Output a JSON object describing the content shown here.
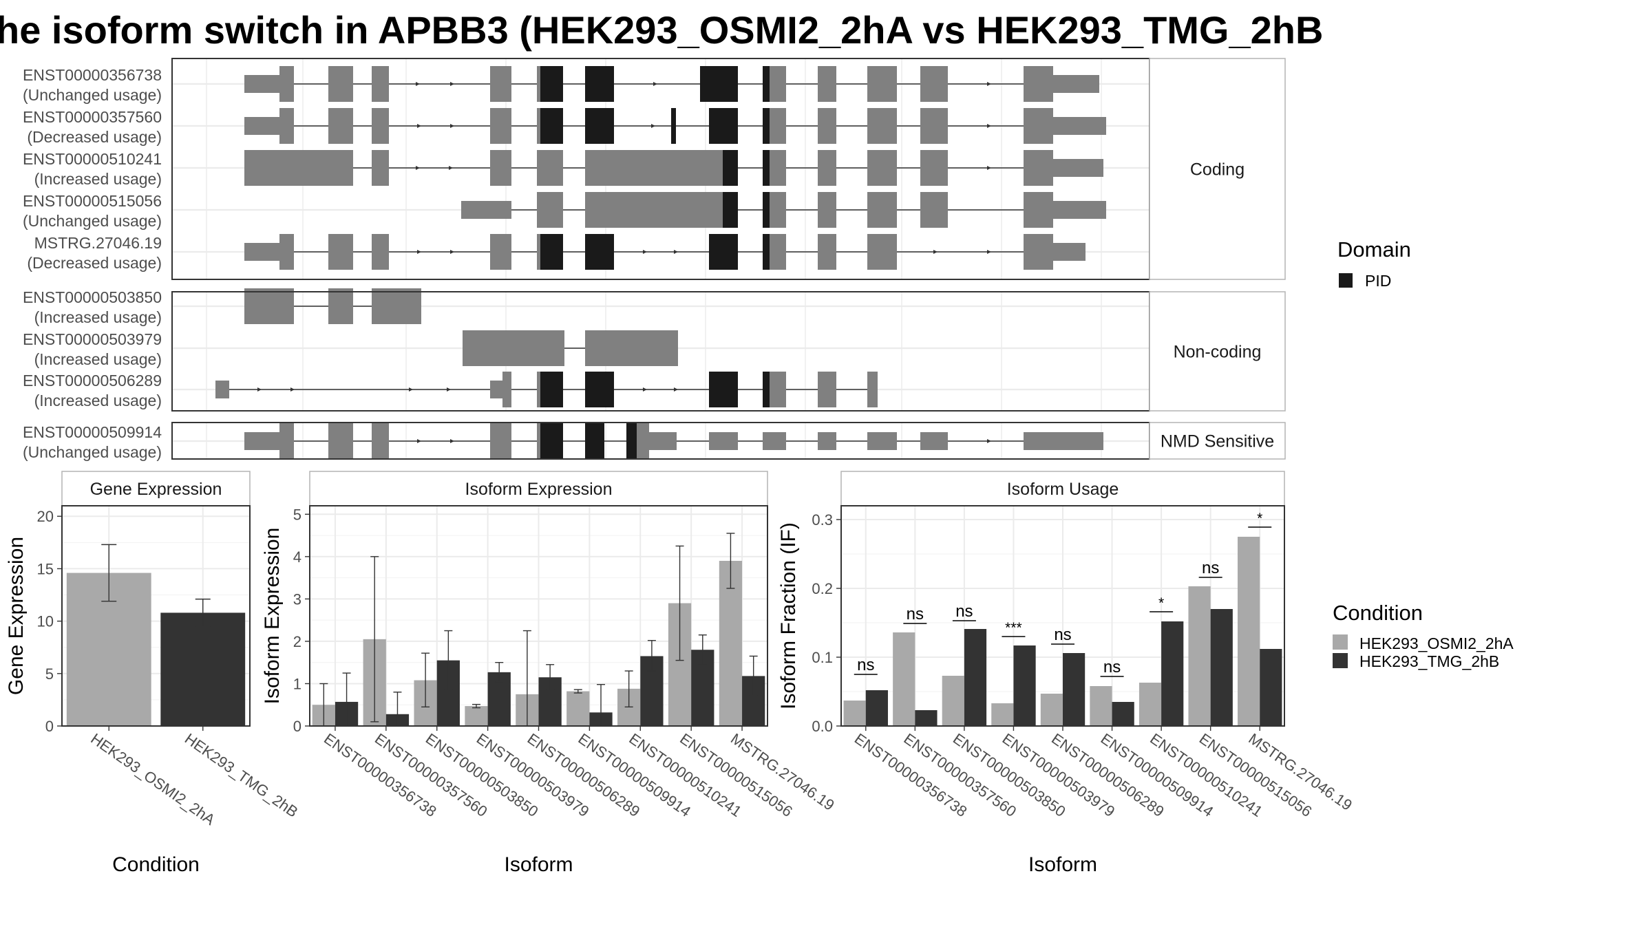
{
  "title": "he isoform switch in APBB3 (HEK293_OSMI2_2hA vs HEK293_TMG_2hB",
  "colors": {
    "exon": "#808080",
    "domain": "#1a1a1a",
    "condition_a": "#a9a9a9",
    "condition_b": "#333333",
    "grid": "#ebebeb",
    "panel_border": "#333333",
    "strip_fill": "#ffffff"
  },
  "legends": {
    "domain": {
      "title": "Domain",
      "items": [
        "PID"
      ]
    },
    "condition": {
      "title": "Condition",
      "items": [
        "HEK293_OSMI2_2hA",
        "HEK293_TMG_2hB"
      ]
    }
  },
  "transcripts": {
    "groups": [
      {
        "strip": "Coding",
        "rows": [
          {
            "id": "ENST00000356738",
            "usage": "(Unchanged usage)"
          },
          {
            "id": "ENST00000357560",
            "usage": "(Decreased usage)"
          },
          {
            "id": "ENST00000510241",
            "usage": "(Increased usage)"
          },
          {
            "id": "ENST00000515056",
            "usage": "(Unchanged usage)"
          },
          {
            "id": "MSTRG.27046.19",
            "usage": "(Decreased usage)"
          }
        ]
      },
      {
        "strip": "Non-coding",
        "rows": [
          {
            "id": "ENST00000503850",
            "usage": "(Increased usage)"
          },
          {
            "id": "ENST00000503979",
            "usage": "(Increased usage)"
          },
          {
            "id": "ENST00000506289",
            "usage": "(Increased usage)"
          }
        ]
      },
      {
        "strip": "NMD Sensitive",
        "rows": [
          {
            "id": "ENST00000509914",
            "usage": "(Unchanged usage)"
          }
        ]
      }
    ]
  },
  "chart_data": [
    {
      "type": "bar",
      "title": "Gene Expression",
      "xlabel": "Condition",
      "ylabel": "Gene Expression",
      "ylim": [
        0,
        21
      ],
      "yticks": [
        0,
        5,
        10,
        15,
        20
      ],
      "categories": [
        "HEK293_OSMI2_2hA",
        "HEK293_TMG_2hB"
      ],
      "values": [
        14.6,
        10.8
      ],
      "error_low": [
        11.9,
        9.5
      ],
      "error_high": [
        17.3,
        12.1
      ]
    },
    {
      "type": "bar",
      "title": "Isoform Expression",
      "xlabel": "Isoform",
      "ylabel": "Isoform Expression",
      "ylim": [
        0,
        5.2
      ],
      "yticks": [
        0,
        1,
        2,
        3,
        4,
        5
      ],
      "categories": [
        "ENST00000356738",
        "ENST00000357560",
        "ENST00000503850",
        "ENST00000503979",
        "ENST00000506289",
        "ENST00000509914",
        "ENST00000510241",
        "ENST00000515056",
        "MSTRG.27046.19"
      ],
      "series": [
        {
          "name": "HEK293_OSMI2_2hA",
          "values": [
            0.5,
            2.05,
            1.08,
            0.47,
            0.75,
            0.82,
            0.88,
            2.9,
            3.9
          ],
          "error_low": [
            0.0,
            0.1,
            0.45,
            0.43,
            0.0,
            0.78,
            0.45,
            1.55,
            3.25
          ],
          "error_high": [
            1.0,
            4.0,
            1.72,
            0.51,
            2.25,
            0.86,
            1.3,
            4.25,
            4.55
          ]
        },
        {
          "name": "HEK293_TMG_2hB",
          "values": [
            0.57,
            0.28,
            1.55,
            1.27,
            1.15,
            0.32,
            1.65,
            1.8,
            1.18
          ],
          "error_low": [
            0.0,
            0.0,
            0.85,
            1.05,
            0.85,
            0.0,
            1.3,
            1.45,
            0.72
          ],
          "error_high": [
            1.25,
            0.8,
            2.25,
            1.5,
            1.45,
            0.98,
            2.02,
            2.15,
            1.65
          ]
        }
      ]
    },
    {
      "type": "bar",
      "title": "Isoform Usage",
      "xlabel": "Isoform",
      "ylabel": "Isoform Fraction (IF)",
      "ylim": [
        0,
        0.32
      ],
      "yticks": [
        0.0,
        0.1,
        0.2,
        0.3
      ],
      "ytick_labels": [
        "0.0",
        "0.1",
        "0.2",
        "0.3"
      ],
      "categories": [
        "ENST00000356738",
        "ENST00000357560",
        "ENST00000503850",
        "ENST00000503979",
        "ENST00000506289",
        "ENST00000509914",
        "ENST00000510241",
        "ENST00000515056",
        "MSTRG.27046.19"
      ],
      "series": [
        {
          "name": "HEK293_OSMI2_2hA",
          "values": [
            0.037,
            0.136,
            0.073,
            0.033,
            0.047,
            0.058,
            0.063,
            0.203,
            0.275
          ]
        },
        {
          "name": "HEK293_TMG_2hB",
          "values": [
            0.052,
            0.023,
            0.141,
            0.117,
            0.106,
            0.035,
            0.152,
            0.17,
            0.112
          ]
        }
      ],
      "significance": [
        "ns",
        "ns",
        "ns",
        "***",
        "ns",
        "ns",
        "*",
        "ns",
        "*"
      ],
      "significance_line_at": [
        0.075,
        0.149,
        0.153,
        0.13,
        0.119,
        0.072,
        0.166,
        0.216,
        0.289
      ]
    }
  ]
}
